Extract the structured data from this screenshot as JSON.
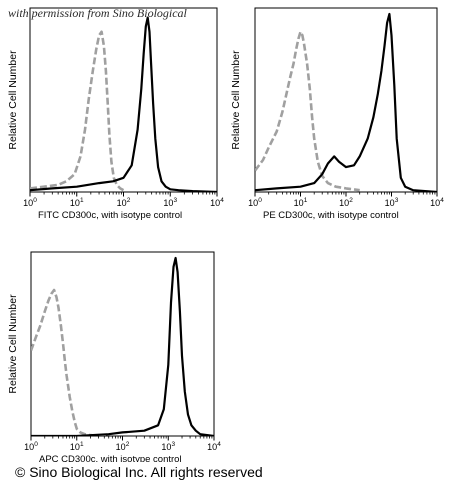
{
  "watermark": "with permission from Sino Biological",
  "copyright": "© Sino Biological Inc. All rights reserved",
  "chart_data": [
    {
      "type": "line",
      "xscale": "log",
      "xlim": [
        1,
        10000
      ],
      "ylabel": "Relative Cell Number",
      "xlabel": "FITC  CD300c,  with isotype control",
      "x_ticks": [
        {
          "value": 1,
          "base": "10",
          "exp": "0"
        },
        {
          "value": 10,
          "base": "10",
          "exp": "1"
        },
        {
          "value": 100,
          "base": "10",
          "exp": "2"
        },
        {
          "value": 1000,
          "base": "10",
          "exp": "3"
        },
        {
          "value": 10000,
          "base": "10",
          "exp": "4"
        }
      ],
      "series": [
        {
          "style": "isotype-dashed-gray",
          "color": "#a0a0a0",
          "x": [
            1,
            2,
            4,
            6,
            9,
            12,
            15,
            18,
            22,
            26,
            30,
            34,
            38,
            42,
            46,
            50,
            55,
            62,
            72,
            85,
            100
          ],
          "y": [
            0.02,
            0.03,
            0.04,
            0.06,
            0.1,
            0.2,
            0.35,
            0.52,
            0.68,
            0.8,
            0.88,
            0.9,
            0.82,
            0.68,
            0.5,
            0.32,
            0.17,
            0.08,
            0.04,
            0.02,
            0.01
          ]
        },
        {
          "style": "cd300c-solid-black",
          "color": "#000000",
          "x": [
            1,
            3,
            10,
            30,
            60,
            100,
            150,
            200,
            240,
            270,
            300,
            330,
            360,
            390,
            430,
            480,
            550,
            650,
            800,
            1000,
            1500,
            3000,
            10000
          ],
          "y": [
            0.01,
            0.02,
            0.03,
            0.05,
            0.06,
            0.08,
            0.15,
            0.35,
            0.58,
            0.78,
            0.93,
            0.98,
            0.9,
            0.72,
            0.5,
            0.3,
            0.14,
            0.06,
            0.03,
            0.015,
            0.01,
            0.005,
            0.0
          ]
        }
      ]
    },
    {
      "type": "line",
      "xscale": "log",
      "xlim": [
        1,
        10000
      ],
      "ylabel": "Relative Cell Number",
      "xlabel": "PE  CD300c,  with isotype control",
      "x_ticks": [
        {
          "value": 1,
          "base": "10",
          "exp": "0"
        },
        {
          "value": 10,
          "base": "10",
          "exp": "1"
        },
        {
          "value": 100,
          "base": "10",
          "exp": "2"
        },
        {
          "value": 1000,
          "base": "10",
          "exp": "3"
        },
        {
          "value": 10000,
          "base": "10",
          "exp": "4"
        }
      ],
      "series": [
        {
          "style": "isotype-dashed-gray",
          "color": "#a0a0a0",
          "x": [
            1,
            1.5,
            2,
            3,
            4,
            5,
            6,
            7,
            8,
            9,
            10,
            11,
            12,
            14,
            16,
            18,
            20,
            24,
            30,
            40,
            60,
            100,
            200
          ],
          "y": [
            0.12,
            0.18,
            0.25,
            0.34,
            0.45,
            0.56,
            0.65,
            0.72,
            0.8,
            0.86,
            0.9,
            0.88,
            0.83,
            0.72,
            0.58,
            0.42,
            0.3,
            0.17,
            0.09,
            0.05,
            0.03,
            0.02,
            0.01
          ]
        },
        {
          "style": "cd300c-solid-black",
          "color": "#000000",
          "x": [
            1,
            3,
            10,
            20,
            30,
            40,
            55,
            70,
            100,
            150,
            200,
            300,
            400,
            500,
            600,
            700,
            800,
            900,
            1000,
            1150,
            1300,
            1600,
            2000,
            3000,
            10000
          ],
          "y": [
            0.01,
            0.02,
            0.03,
            0.05,
            0.1,
            0.16,
            0.2,
            0.17,
            0.14,
            0.15,
            0.2,
            0.3,
            0.42,
            0.55,
            0.68,
            0.82,
            0.95,
            1.0,
            0.88,
            0.6,
            0.3,
            0.08,
            0.03,
            0.01,
            0.0
          ]
        }
      ]
    },
    {
      "type": "line",
      "xscale": "log",
      "xlim": [
        1,
        10000
      ],
      "ylabel": "Relative Cell Number",
      "xlabel": "APC CD300c, with isotype control",
      "x_ticks": [
        {
          "value": 1,
          "base": "10",
          "exp": "0"
        },
        {
          "value": 10,
          "base": "10",
          "exp": "1"
        },
        {
          "value": 100,
          "base": "10",
          "exp": "2"
        },
        {
          "value": 1000,
          "base": "10",
          "exp": "3"
        },
        {
          "value": 10000,
          "base": "10",
          "exp": "4"
        }
      ],
      "series": [
        {
          "style": "isotype-dashed-gray",
          "color": "#a0a0a0",
          "x": [
            1,
            1.3,
            1.6,
            2,
            2.4,
            2.8,
            3.2,
            3.6,
            4,
            4.5,
            5,
            5.5,
            6,
            7,
            8,
            9,
            10,
            12,
            15,
            20,
            30,
            50
          ],
          "y": [
            0.48,
            0.56,
            0.62,
            0.7,
            0.76,
            0.8,
            0.82,
            0.78,
            0.72,
            0.62,
            0.52,
            0.42,
            0.34,
            0.22,
            0.14,
            0.08,
            0.04,
            0.02,
            0.01,
            0.005,
            0.0,
            0.0
          ]
        },
        {
          "style": "cd300c-solid-black",
          "color": "#000000",
          "x": [
            1,
            10,
            50,
            100,
            300,
            600,
            800,
            1000,
            1150,
            1300,
            1450,
            1600,
            1800,
            2000,
            2300,
            2700,
            3200,
            4000,
            5000,
            10000
          ],
          "y": [
            0.0,
            0.0,
            0.01,
            0.02,
            0.03,
            0.06,
            0.15,
            0.4,
            0.75,
            0.95,
            1.0,
            0.92,
            0.7,
            0.45,
            0.25,
            0.12,
            0.06,
            0.03,
            0.01,
            0.0
          ]
        }
      ]
    }
  ]
}
